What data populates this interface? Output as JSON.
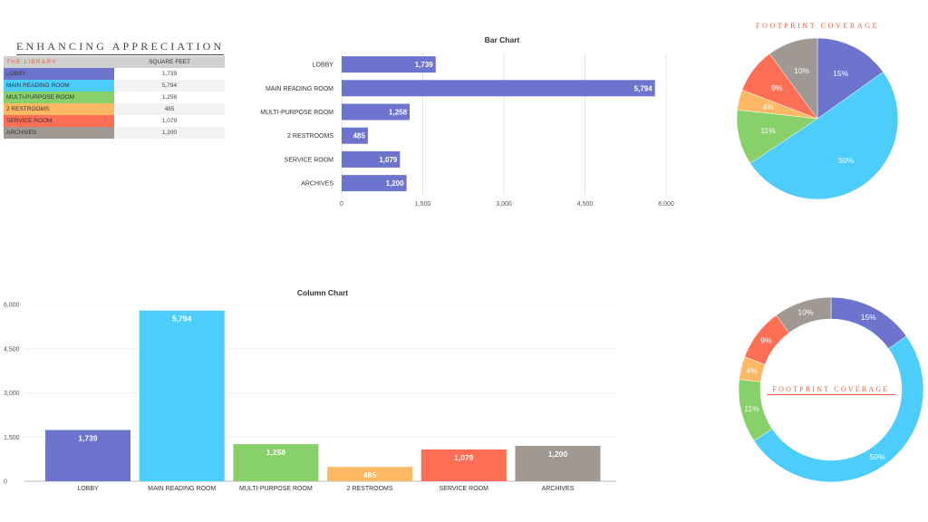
{
  "table": {
    "title": "ENHANCING APPRECIATION",
    "header_name": "THE LIBRARY",
    "header_value": "SQUARE FEET",
    "rows": [
      {
        "name": "LOBBY",
        "value": "1,739",
        "color": "#6d74cd"
      },
      {
        "name": "MAIN READING ROOM",
        "value": "5,794",
        "color": "#4ccdfb"
      },
      {
        "name": "MULTI-PURPOSE ROOM",
        "value": "1,258",
        "color": "#88d06a"
      },
      {
        "name": "2 RESTROOMS",
        "value": "485",
        "color": "#fdb863"
      },
      {
        "name": "SERVICE ROOM",
        "value": "1,079",
        "color": "#fe6f55"
      },
      {
        "name": "ARCHIVES",
        "value": "1,200",
        "color": "#9f9893"
      }
    ]
  },
  "chart_data": [
    {
      "type": "bar",
      "title": "Bar Chart",
      "categories": [
        "LOBBY",
        "MAIN READING ROOM",
        "MULTI-PURPOSE ROOM",
        "2 RESTROOMS",
        "SERVICE ROOM",
        "ARCHIVES"
      ],
      "values": [
        1739,
        5794,
        1258,
        485,
        1079,
        1200
      ],
      "value_labels": [
        "1,739",
        "5,794",
        "1,258",
        "485",
        "1,079",
        "1,200"
      ],
      "xlim": [
        0,
        6000
      ],
      "ticks": [
        "0",
        "1,500",
        "3,000",
        "4,500",
        "6,000"
      ],
      "color": "#6d74cd",
      "grid": true
    },
    {
      "type": "pie",
      "title": "FOOTPRINT COVERAGE",
      "categories": [
        "LOBBY",
        "MAIN READING ROOM",
        "MULTI-PURPOSE ROOM",
        "2 RESTROOMS",
        "SERVICE ROOM",
        "ARCHIVES"
      ],
      "values": [
        15,
        50,
        11,
        4,
        9,
        10
      ],
      "value_labels": [
        "15%",
        "50%",
        "11%",
        "4%",
        "9%",
        "10%"
      ],
      "colors": [
        "#6d74cd",
        "#4ccdfb",
        "#88d06a",
        "#fdb863",
        "#fe6f55",
        "#9f9893"
      ]
    },
    {
      "type": "bar",
      "orientation": "vertical",
      "title": "Column Chart",
      "categories": [
        "LOBBY",
        "MAIN READING ROOM",
        "MULTI-PURPOSE ROOM",
        "2 RESTROOMS",
        "SERVICE ROOM",
        "ARCHIVES"
      ],
      "values": [
        1739,
        5794,
        1258,
        485,
        1079,
        1200
      ],
      "value_labels": [
        "1,739",
        "5,794",
        "1,258",
        "485",
        "1,079",
        "1,200"
      ],
      "ylim": [
        0,
        6000
      ],
      "ticks": [
        "0",
        "1,500",
        "3,000",
        "4,500",
        "6,000"
      ],
      "colors": [
        "#6d74cd",
        "#4ccdfb",
        "#88d06a",
        "#fdb863",
        "#fe6f55",
        "#9f9893"
      ],
      "grid": true
    },
    {
      "type": "pie",
      "style": "donut",
      "title": "FOOTPRINT COVERAGE",
      "categories": [
        "LOBBY",
        "MAIN READING ROOM",
        "MULTI-PURPOSE ROOM",
        "2 RESTROOMS",
        "SERVICE ROOM",
        "ARCHIVES"
      ],
      "values": [
        15,
        50,
        11,
        4,
        9,
        10
      ],
      "value_labels": [
        "15%",
        "50%",
        "11%",
        "4%",
        "9%",
        "10%"
      ],
      "colors": [
        "#6d74cd",
        "#4ccdfb",
        "#88d06a",
        "#fdb863",
        "#fe6f55",
        "#9f9893"
      ]
    }
  ]
}
